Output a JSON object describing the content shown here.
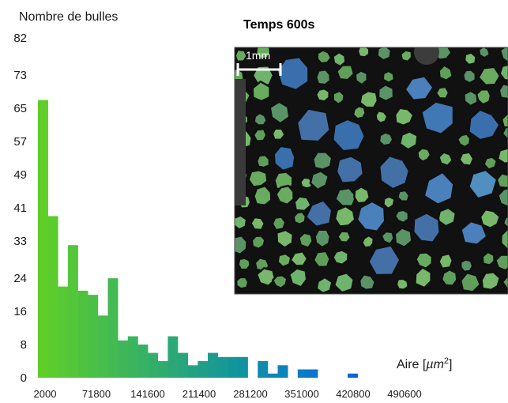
{
  "chart_data": {
    "type": "bar",
    "title": "Temps 600s",
    "ylabel": "Nombre de bulles",
    "xlabel_prefix": "Aire [",
    "xlabel_unit": "µm",
    "xlabel_exponent": "2",
    "xlabel_suffix": "]",
    "xlim": [
      2000,
      490600
    ],
    "ylim": [
      0,
      82
    ],
    "yticks": [
      "0",
      "8",
      "16",
      "24",
      "33",
      "41",
      "49",
      "57",
      "65",
      "73",
      "82"
    ],
    "xticks": [
      "2000",
      "71800",
      "141600",
      "211400",
      "281200",
      "351000",
      "420800",
      "490600"
    ],
    "values": [
      67,
      39,
      22,
      32,
      21,
      20,
      15,
      24,
      9,
      10,
      8,
      6,
      4,
      10,
      6,
      3,
      4,
      6,
      5,
      5,
      5,
      0,
      4,
      1,
      3,
      0,
      2,
      2,
      0,
      0,
      0,
      1,
      0,
      0
    ],
    "bar_colors": [
      "#5fce29",
      "#5bcc2e",
      "#57c934",
      "#53c63a",
      "#4fc340",
      "#4bc046",
      "#47bd4c",
      "#43ba52",
      "#3fb758",
      "#3bb45e",
      "#37b164",
      "#33ae6a",
      "#2fab70",
      "#2ba876",
      "#27a57c",
      "#23a282",
      "#1f9f88",
      "#1b9c8e",
      "#179994",
      "#13969a",
      "#1093a0",
      "#0f8fa6",
      "#0e8bad",
      "#0d87b3",
      "#0c83ba",
      "#0b7fc0",
      "#0a7bc6",
      "#0977cc",
      "#0873d0",
      "#0770d3",
      "#066cd6",
      "#0568d9",
      "#0464dc",
      "#0360df"
    ],
    "grid": false,
    "inset_image": {
      "label": "Temps 600s",
      "scale_bar": "1mm"
    }
  }
}
